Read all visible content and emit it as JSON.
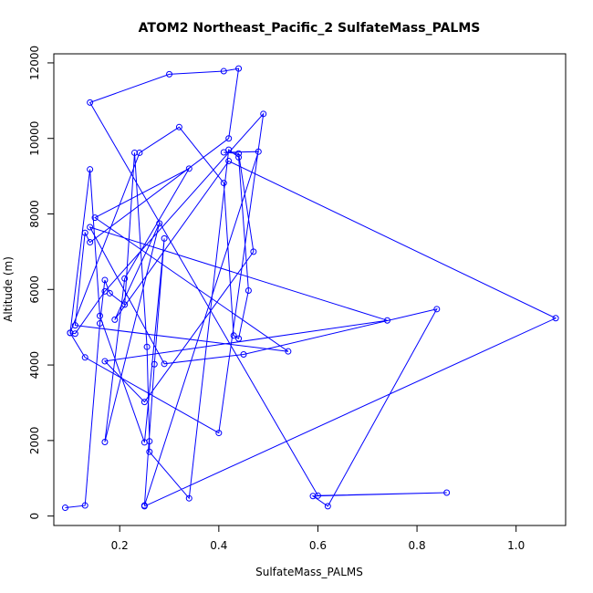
{
  "chart_data": {
    "type": "line",
    "title": "ATOM2 Northeast_Pacific_2 SulfateMass_PALMS",
    "xlabel": "SulfateMass_PALMS",
    "ylabel": "Altitude (m)",
    "xlim": [
      0.067,
      1.1
    ],
    "ylim": [
      -250,
      12240
    ],
    "xticks": [
      0.2,
      0.4,
      0.6,
      0.8,
      1.0
    ],
    "xtick_labels": [
      "0.2",
      "0.4",
      "0.6",
      "0.8",
      "1.0"
    ],
    "yticks": [
      0,
      2000,
      4000,
      6000,
      8000,
      10000,
      12000
    ],
    "ytick_labels": [
      "0",
      "2000",
      "4000",
      "6000",
      "8000",
      "10000",
      "12000"
    ],
    "grid": false,
    "series": [
      {
        "color": "#0000ff",
        "marker": "open-circle",
        "x": [
          0.09,
          0.13,
          0.16,
          0.17,
          0.18,
          0.21,
          0.23,
          0.255,
          0.26,
          0.26,
          0.34,
          0.42,
          0.44,
          0.46,
          0.44,
          0.43,
          0.41,
          0.32,
          0.24,
          0.1,
          0.11,
          0.17,
          0.49,
          0.4,
          0.13,
          0.1,
          0.14,
          0.16,
          0.25,
          0.29,
          0.27,
          0.25,
          0.48,
          0.41,
          0.44,
          0.47,
          0.25,
          0.17,
          0.74,
          0.14,
          0.29,
          0.45,
          0.84,
          0.62,
          0.59,
          0.86,
          0.6,
          0.14,
          0.3,
          0.41,
          0.44,
          0.42,
          0.14,
          0.13,
          0.11,
          0.54,
          0.15,
          0.34,
          0.21,
          0.17,
          0.28,
          0.19,
          0.42,
          1.08,
          0.25
        ],
        "y": [
          220,
          280,
          5100,
          6250,
          5900,
          5600,
          9620,
          4480,
          1980,
          1700,
          470,
          9700,
          9500,
          5970,
          4700,
          4780,
          8820,
          10300,
          9620,
          4850,
          4830,
          5950,
          10650,
          2200,
          4200,
          4850,
          9180,
          5300,
          1950,
          7350,
          4020,
          280,
          9650,
          9630,
          9600,
          7000,
          3020,
          4100,
          5180,
          7650,
          4030,
          4280,
          5480,
          260,
          530,
          620,
          540,
          10950,
          11700,
          11780,
          11850,
          10000,
          7250,
          7500,
          5050,
          4360,
          7900,
          9200,
          6290,
          1960,
          7750,
          5200,
          9400,
          5240,
          260
        ]
      }
    ]
  }
}
